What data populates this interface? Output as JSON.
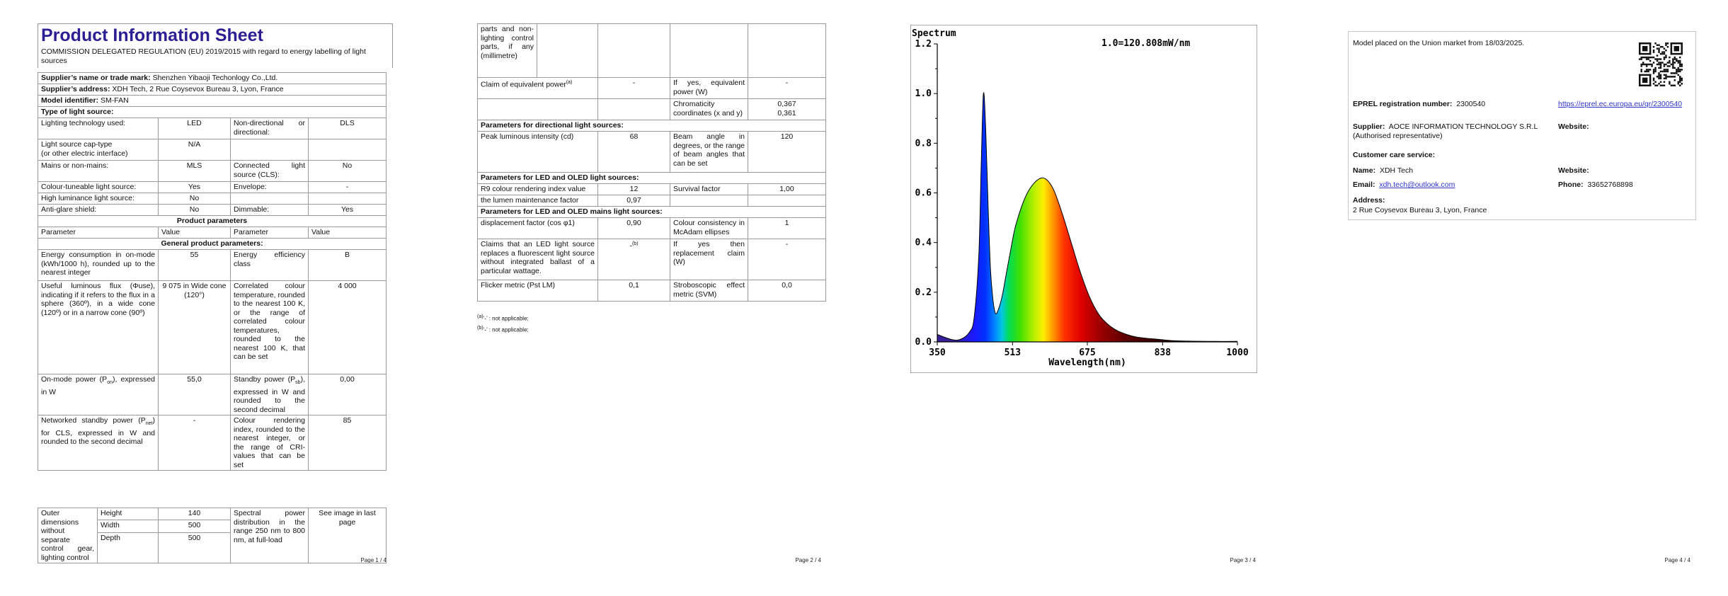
{
  "page1": {
    "title": "Product Information Sheet",
    "regulation": "COMMISSION DELEGATED REGULATION (EU) 2019/2015 with regard to energy labelling of light sources",
    "supplier_name_label": "Supplier’s name or trade mark:",
    "supplier_name": "Shenzhen Yibaoji Techonlogy Co.,Ltd.",
    "supplier_address_label": "Supplier’s address:",
    "supplier_address": "XDH Tech, 2 Rue Coysevox Bureau 3, Lyon, France",
    "model_label": "Model identifier:",
    "model": "SM-FAN",
    "type_label": "Type of light source:",
    "lighting_tech_label": "Lighting technology used:",
    "lighting_tech": "LED",
    "nondir_label": "Non-directional or directional:",
    "nondir": "DLS",
    "cap_label_1": "Light source cap-type",
    "cap_label_2": "(or other electric interface)",
    "cap": "N/A",
    "mains_label": "Mains or non-mains:",
    "mains": "MLS",
    "cls_label": "Connected light source (CLS):",
    "cls": "No",
    "colour_tune_label": "Colour-tuneable light source:",
    "colour_tune": "Yes",
    "envelope_label": "Envelope:",
    "envelope": "-",
    "high_lum_label": "High luminance light source:",
    "high_lum": "No",
    "anti_glare_label": "Anti-glare shield:",
    "anti_glare": "No",
    "dimmable_label": "Dimmable:",
    "dimmable": "Yes",
    "product_params": "Product parameters",
    "col_parameter": "Parameter",
    "col_value": "Value",
    "general_params": "General product parameters:",
    "energy_cons_label": "Energy consumption in on-mode (kWh/1000 h), rounded up to the nearest integer",
    "energy_cons": "55",
    "energy_class_label": "Energy efficiency class",
    "energy_class": "B",
    "flux_label": "Useful luminous flux (Φuse), indicating if it refers to the flux in a sphere (360º), in a wide cone (120º) or in a narrow cone (90º)",
    "flux": "9 075 in Wide cone (120°)",
    "cct_label": "Correlated colour temperature, rounded to the nearest 100 K, or the range of correlated colour temperatures, rounded to the nearest 100 K, that can be set",
    "cct": "4 000",
    "on_power_label_a": "On-mode power (P",
    "on_power_sub": "on",
    "on_power_label_b": "), expressed in W",
    "on_power": "55,0",
    "standby_label_a": "Standby power (P",
    "standby_sub": "sb",
    "standby_label_b": "), expressed in W and rounded to the second decimal",
    "standby": "0,00",
    "net_standby_label_a": "Networked standby power (P",
    "net_standby_sub": "net",
    "net_standby_label_b": ") for CLS, expressed in W and rounded to the second decimal",
    "net_standby": "-",
    "cri_label": "Colour rendering index, rounded to the nearest integer, or the range of CRI-values that can be set",
    "cri": "85",
    "outer_dim_label": "Outer dimensions without separate control gear, lighting control",
    "height_label": "Height",
    "height": "140",
    "width_label": "Width",
    "width": "500",
    "depth_label": "Depth",
    "depth": "500",
    "spd_label": "Spectral power distribution in the range 250 nm to 800 nm, at full-load",
    "spd": "See image in last page",
    "page_num": "Page 1 / 4"
  },
  "page2": {
    "cont_label": "parts and non-lighting control parts, if any (millimetre)",
    "equiv_label_a": "Claim of equivalent power",
    "equiv_sup": "(a)",
    "equiv": "-",
    "equiv_yes_label": "If yes, equivalent power (W)",
    "equiv_yes": "-",
    "chroma_label": "Chromaticity coordinates (x and y)",
    "chroma_x": "0,367",
    "chroma_y": "0,361",
    "dir_params": "Parameters for directional light sources:",
    "peak_label": "Peak luminous intensity (cd)",
    "peak": "68",
    "beam_label": "Beam angle in degrees, or the range of beam angles that can be set",
    "beam": "120",
    "led_params": "Parameters for LED and OLED light sources:",
    "r9_label": "R9 colour rendering index value",
    "r9": "12",
    "survival_label": "Survival factor",
    "survival": "1,00",
    "lumen_maint_label": "the lumen maintenance factor",
    "lumen_maint": "0,97",
    "led_mains_params": "Parameters for LED and OLED mains light sources:",
    "displacement_label": "displacement factor (cos φ1)",
    "displacement": "0,90",
    "consistency_label": "Colour consistency in McAdam ellipses",
    "consistency": "1",
    "replace_label": "Claims that an LED light source replaces a fluorescent light source without integrated ballast of a particular wattage.",
    "replace": "-",
    "replace_sup": "(b)",
    "replace_yes_label": "If yes then replacement claim (W)",
    "replace_yes": "-",
    "flicker_label": "Flicker metric (Pst LM)",
    "flicker": "0,1",
    "strobo_label": "Stroboscopic effect metric (SVM)",
    "strobo": "0,0",
    "footnote_a_sup": "(a)",
    "footnote_a": "‘-’ : not applicable;",
    "footnote_b_sup": "(b)",
    "footnote_b": "‘-’ : not applicable;",
    "page_num": "Page 2 / 4"
  },
  "page3": {
    "page_num": "Page 3 / 4"
  },
  "chart_data": {
    "type": "area",
    "title": "Spectrum",
    "annotation": "1.0=120.808mW/nm",
    "xlabel": "Wavelength(nm)",
    "ylabel": "",
    "xlim": [
      350,
      1000
    ],
    "ylim": [
      0,
      1.2
    ],
    "x_ticks": [
      "350",
      "513",
      "675",
      "838",
      "1000"
    ],
    "y_ticks": [
      "0.0",
      "0.2",
      "0.4",
      "0.6",
      "0.8",
      "1.0",
      "1.2"
    ],
    "grid": false,
    "x": [
      350,
      380,
      400,
      420,
      430,
      440,
      445,
      450,
      455,
      460,
      465,
      470,
      475,
      480,
      490,
      500,
      510,
      520,
      540,
      560,
      580,
      600,
      620,
      640,
      660,
      680,
      700,
      720,
      740,
      760,
      780,
      800,
      830,
      860,
      900,
      950,
      1000
    ],
    "values": [
      0.03,
      0.01,
      0.01,
      0.04,
      0.1,
      0.35,
      0.7,
      1.0,
      0.85,
      0.55,
      0.3,
      0.18,
      0.12,
      0.12,
      0.18,
      0.28,
      0.38,
      0.47,
      0.58,
      0.64,
      0.66,
      0.62,
      0.52,
      0.4,
      0.28,
      0.18,
      0.11,
      0.07,
      0.045,
      0.03,
      0.02,
      0.015,
      0.01,
      0.005,
      0.003,
      0.002,
      0.002
    ]
  },
  "page4": {
    "placed": "Model placed on the Union market from 18/03/2025.",
    "eprel_label": "EPREL registration number:",
    "eprel": "2300540",
    "eprel_link": "https://eprel.ec.europa.eu/qr/2300540",
    "supplier_label": "Supplier:",
    "supplier": "AOCE INFORMATION TECHNOLOGY S.R.L (Authorised representative)",
    "website_label": "Website:",
    "care_label": "Customer care service:",
    "name_label": "Name:",
    "name": "XDH Tech",
    "website_label_2": "Website:",
    "email_label": "Email:",
    "email": "xdh.tech@outlook.com",
    "phone_label": "Phone:",
    "phone": "33652768898",
    "address_label": "Address:",
    "address": "2 Rue Coysevox Bureau 3, Lyon, France",
    "page_num": "Page 4 / 4"
  }
}
